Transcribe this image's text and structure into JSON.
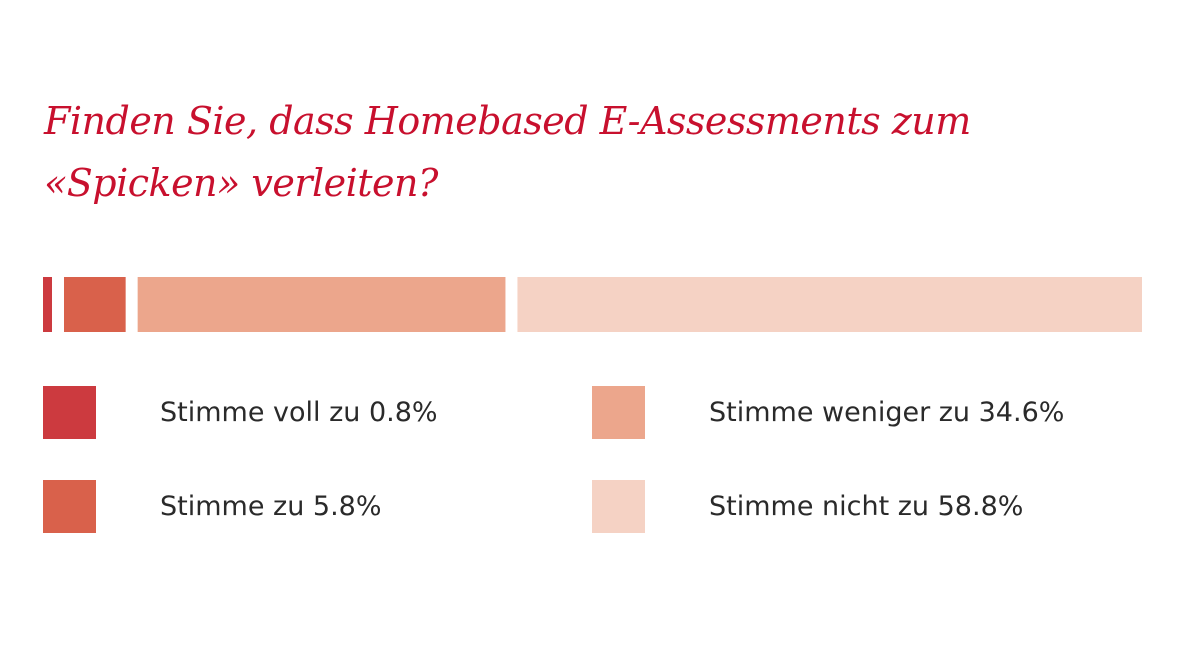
{
  "chart_data": {
    "type": "bar",
    "orientation": "horizontal-stacked",
    "title": "Finden Sie, dass Homebased E-Assessments zum «Spicken» verleiten?",
    "unit": "%",
    "categories": [
      "Stimme voll zu",
      "Stimme zu",
      "Stimme weniger zu",
      "Stimme nicht zu"
    ],
    "values": [
      0.8,
      5.8,
      34.6,
      58.8
    ],
    "colors": [
      "#cc3a3f",
      "#d9614b",
      "#eca68c",
      "#f5d2c4"
    ],
    "legend": [
      {
        "label": "Stimme voll zu 0.8%"
      },
      {
        "label": "Stimme zu 5.8%"
      },
      {
        "label": "Stimme weniger zu 34.6%"
      },
      {
        "label": "Stimme nicht zu 58.8%"
      }
    ],
    "legend_placement": "bottom",
    "grid": false,
    "xlim": [
      0,
      100
    ]
  }
}
